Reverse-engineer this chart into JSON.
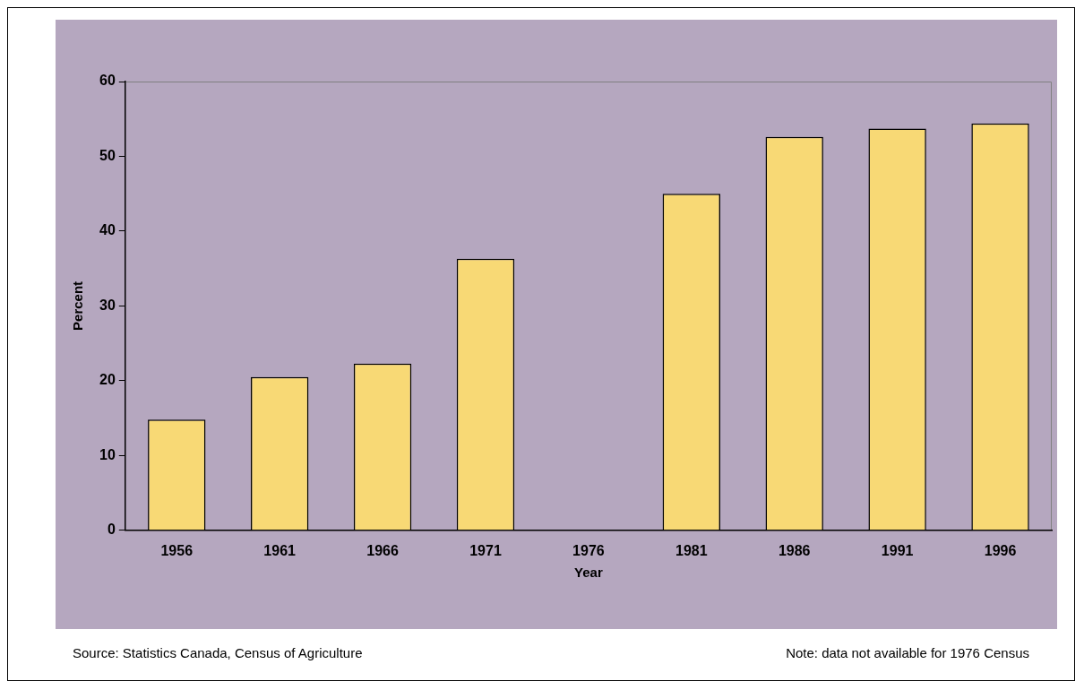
{
  "chart_data": {
    "type": "bar",
    "xlabel": "Year",
    "ylabel": "Percent",
    "categories": [
      "1956",
      "1961",
      "1966",
      "1971",
      "1976",
      "1981",
      "1986",
      "1991",
      "1996"
    ],
    "values": [
      14.8,
      20.5,
      22.3,
      36.3,
      null,
      45.0,
      52.6,
      53.7,
      54.4
    ],
    "color": "#f8d975",
    "ylim": [
      0,
      60
    ],
    "yticks": [
      0,
      10,
      20,
      30,
      40,
      50,
      60
    ],
    "annotations": [
      "Source:  Statistics Canada, Census of Agriculture",
      "Note: data not available for 1976 Census"
    ]
  }
}
